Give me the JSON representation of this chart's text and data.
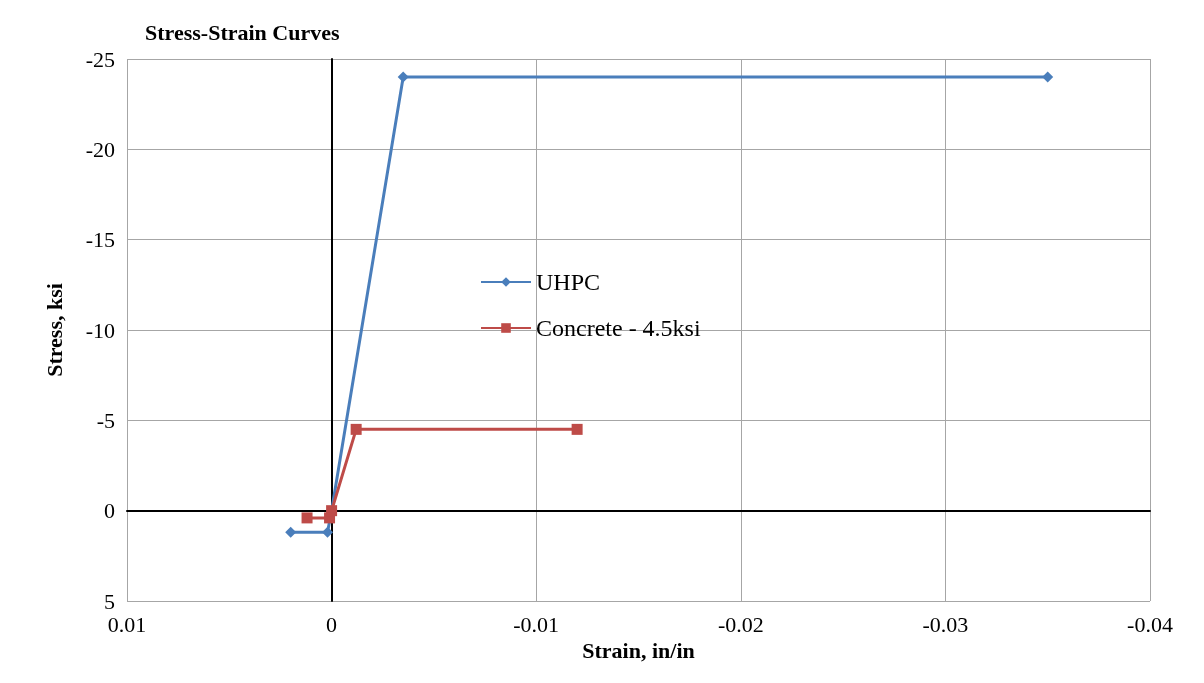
{
  "chart_data": {
    "type": "line",
    "title": "Stress-Strain Curves",
    "xlabel": "Strain, in/in",
    "ylabel": "Stress, ksi",
    "xlim": [
      0.01,
      -0.04
    ],
    "xticks": [
      0.01,
      0,
      -0.01,
      -0.02,
      -0.03,
      -0.04
    ],
    "ylim": [
      5,
      -25
    ],
    "yticks": [
      5,
      0,
      -5,
      -10,
      -15,
      -20,
      -25
    ],
    "grid": true,
    "legend": "center",
    "series": [
      {
        "name": "UHPC",
        "color": "#4a7ebb",
        "marker": "diamond",
        "x": [
          0.002,
          0.0002,
          0,
          -0.0035,
          -0.035
        ],
        "values": [
          1.2,
          1.2,
          0,
          -24,
          -24
        ]
      },
      {
        "name": "Concrete - 4.5ksi",
        "color": "#be4b48",
        "marker": "square",
        "x": [
          0.0012,
          0.0001,
          0,
          -0.0012,
          -0.012
        ],
        "values": [
          0.4,
          0.4,
          0,
          -4.5,
          -4.5
        ]
      }
    ]
  }
}
